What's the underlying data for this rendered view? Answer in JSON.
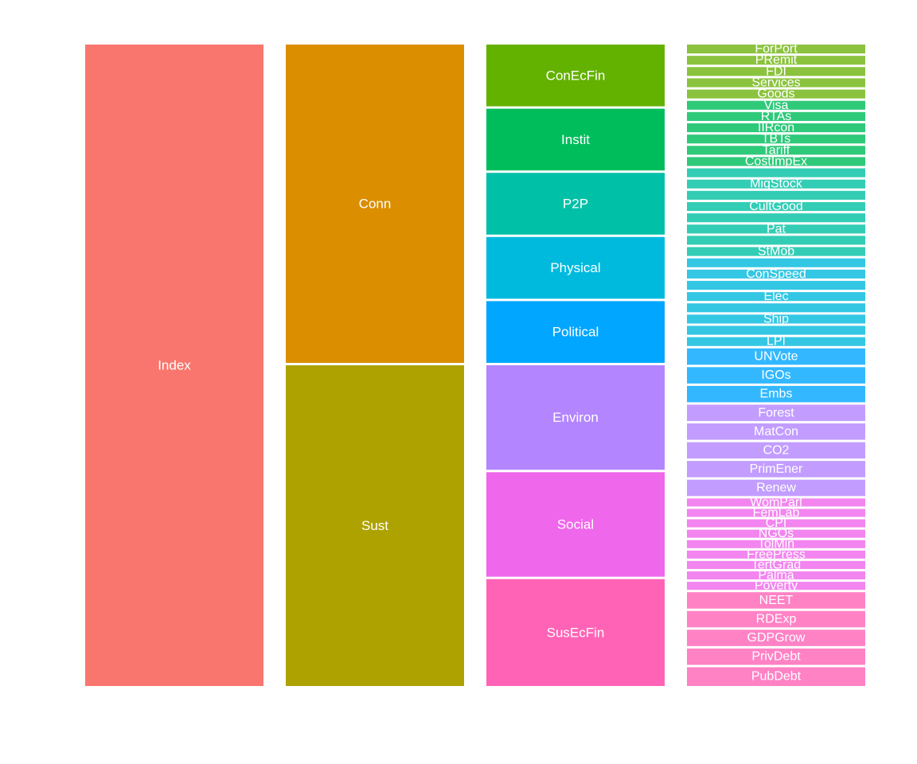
{
  "chart_data": {
    "type": "hierarchy",
    "levels": [
      [
        {
          "label": "Index",
          "weight": 1,
          "color": "#F8766D"
        }
      ],
      [
        {
          "label": "Conn",
          "weight": 1,
          "color": "#DB8E00"
        },
        {
          "label": "Sust",
          "weight": 1,
          "color": "#AEA200"
        }
      ],
      [
        {
          "label": "ConEcFin",
          "weight": 1,
          "color": "#64B200"
        },
        {
          "label": "Instit",
          "weight": 1,
          "color": "#00BD5C"
        },
        {
          "label": "P2P",
          "weight": 1,
          "color": "#00C1A7"
        },
        {
          "label": "Physical",
          "weight": 1,
          "color": "#00BADE"
        },
        {
          "label": "Political",
          "weight": 1,
          "color": "#00A6FF"
        },
        {
          "label": "Environ",
          "weight": 1.667,
          "color": "#B385FF"
        },
        {
          "label": "Social",
          "weight": 1.667,
          "color": "#EF67EB"
        },
        {
          "label": "SusEcFin",
          "weight": 1.667,
          "color": "#FF63B6"
        }
      ],
      [
        {
          "label": "ForPort",
          "weight": 1,
          "color": "#8BC33E"
        },
        {
          "label": "PRemit",
          "weight": 1,
          "color": "#8BC33E"
        },
        {
          "label": "FDI",
          "weight": 1,
          "color": "#8BC33E"
        },
        {
          "label": "Services",
          "weight": 1,
          "color": "#8BC33E"
        },
        {
          "label": "Goods",
          "weight": 1,
          "color": "#8BC33E"
        },
        {
          "label": "Visa",
          "weight": 1,
          "color": "#2FC97A"
        },
        {
          "label": "RTAs",
          "weight": 1,
          "color": "#2FC97A"
        },
        {
          "label": "IIRcon",
          "weight": 1,
          "color": "#2FC97A"
        },
        {
          "label": "TBTs",
          "weight": 1,
          "color": "#2FC97A"
        },
        {
          "label": "Tariff",
          "weight": 1,
          "color": "#2FC97A"
        },
        {
          "label": "CostImpEx",
          "weight": 1,
          "color": "#2FC97A"
        },
        {
          "label": "",
          "weight": 1,
          "color": "#33CDB5"
        },
        {
          "label": "MigStock",
          "weight": 1,
          "color": "#33CDB5"
        },
        {
          "label": "",
          "weight": 1,
          "color": "#33CDB5"
        },
        {
          "label": "CultGood",
          "weight": 1,
          "color": "#33CDB5"
        },
        {
          "label": "",
          "weight": 1,
          "color": "#33CDB5"
        },
        {
          "label": "Pat",
          "weight": 1,
          "color": "#33CDB5"
        },
        {
          "label": "",
          "weight": 1,
          "color": "#33CDB5"
        },
        {
          "label": "StMob",
          "weight": 1,
          "color": "#33CDB5"
        },
        {
          "label": "",
          "weight": 1,
          "color": "#33C7E4"
        },
        {
          "label": "ConSpeed",
          "weight": 1,
          "color": "#33C7E4"
        },
        {
          "label": "",
          "weight": 1,
          "color": "#33C7E4"
        },
        {
          "label": "Elec",
          "weight": 1,
          "color": "#33C7E4"
        },
        {
          "label": "",
          "weight": 1,
          "color": "#33C7E4"
        },
        {
          "label": "Ship",
          "weight": 1,
          "color": "#33C7E4"
        },
        {
          "label": "",
          "weight": 1,
          "color": "#33C7E4"
        },
        {
          "label": "LPI",
          "weight": 1,
          "color": "#33C7E4"
        },
        {
          "label": "UNVote",
          "weight": 1.667,
          "color": "#33B8FF"
        },
        {
          "label": "IGOs",
          "weight": 1.667,
          "color": "#33B8FF"
        },
        {
          "label": "Embs",
          "weight": 1.667,
          "color": "#33B8FF"
        },
        {
          "label": "Forest",
          "weight": 1.667,
          "color": "#C29DFF"
        },
        {
          "label": "MatCon",
          "weight": 1.667,
          "color": "#C29DFF"
        },
        {
          "label": "CO2",
          "weight": 1.667,
          "color": "#C29DFF"
        },
        {
          "label": "PrimEner",
          "weight": 1.667,
          "color": "#C29DFF"
        },
        {
          "label": "Renew",
          "weight": 1.667,
          "color": "#C29DFF"
        },
        {
          "label": "WomParl",
          "weight": 0.926,
          "color": "#F285EF"
        },
        {
          "label": "FemLab",
          "weight": 0.926,
          "color": "#F285EF"
        },
        {
          "label": "CPI",
          "weight": 0.926,
          "color": "#F285EF"
        },
        {
          "label": "NGOs",
          "weight": 0.926,
          "color": "#F285EF"
        },
        {
          "label": "TolMin",
          "weight": 0.926,
          "color": "#F285EF"
        },
        {
          "label": "FreePress",
          "weight": 0.926,
          "color": "#F285EF"
        },
        {
          "label": "TertGrad",
          "weight": 0.926,
          "color": "#F285EF"
        },
        {
          "label": "Palma",
          "weight": 0.926,
          "color": "#F285EF"
        },
        {
          "label": "Poverty",
          "weight": 0.926,
          "color": "#F285EF"
        },
        {
          "label": "NEET",
          "weight": 1.667,
          "color": "#FF82C5"
        },
        {
          "label": "RDExp",
          "weight": 1.667,
          "color": "#FF82C5"
        },
        {
          "label": "GDPGrow",
          "weight": 1.667,
          "color": "#FF82C5"
        },
        {
          "label": "PrivDebt",
          "weight": 1.667,
          "color": "#FF82C5"
        },
        {
          "label": "PubDebt",
          "weight": 1.667,
          "color": "#FF82C5"
        }
      ]
    ]
  }
}
